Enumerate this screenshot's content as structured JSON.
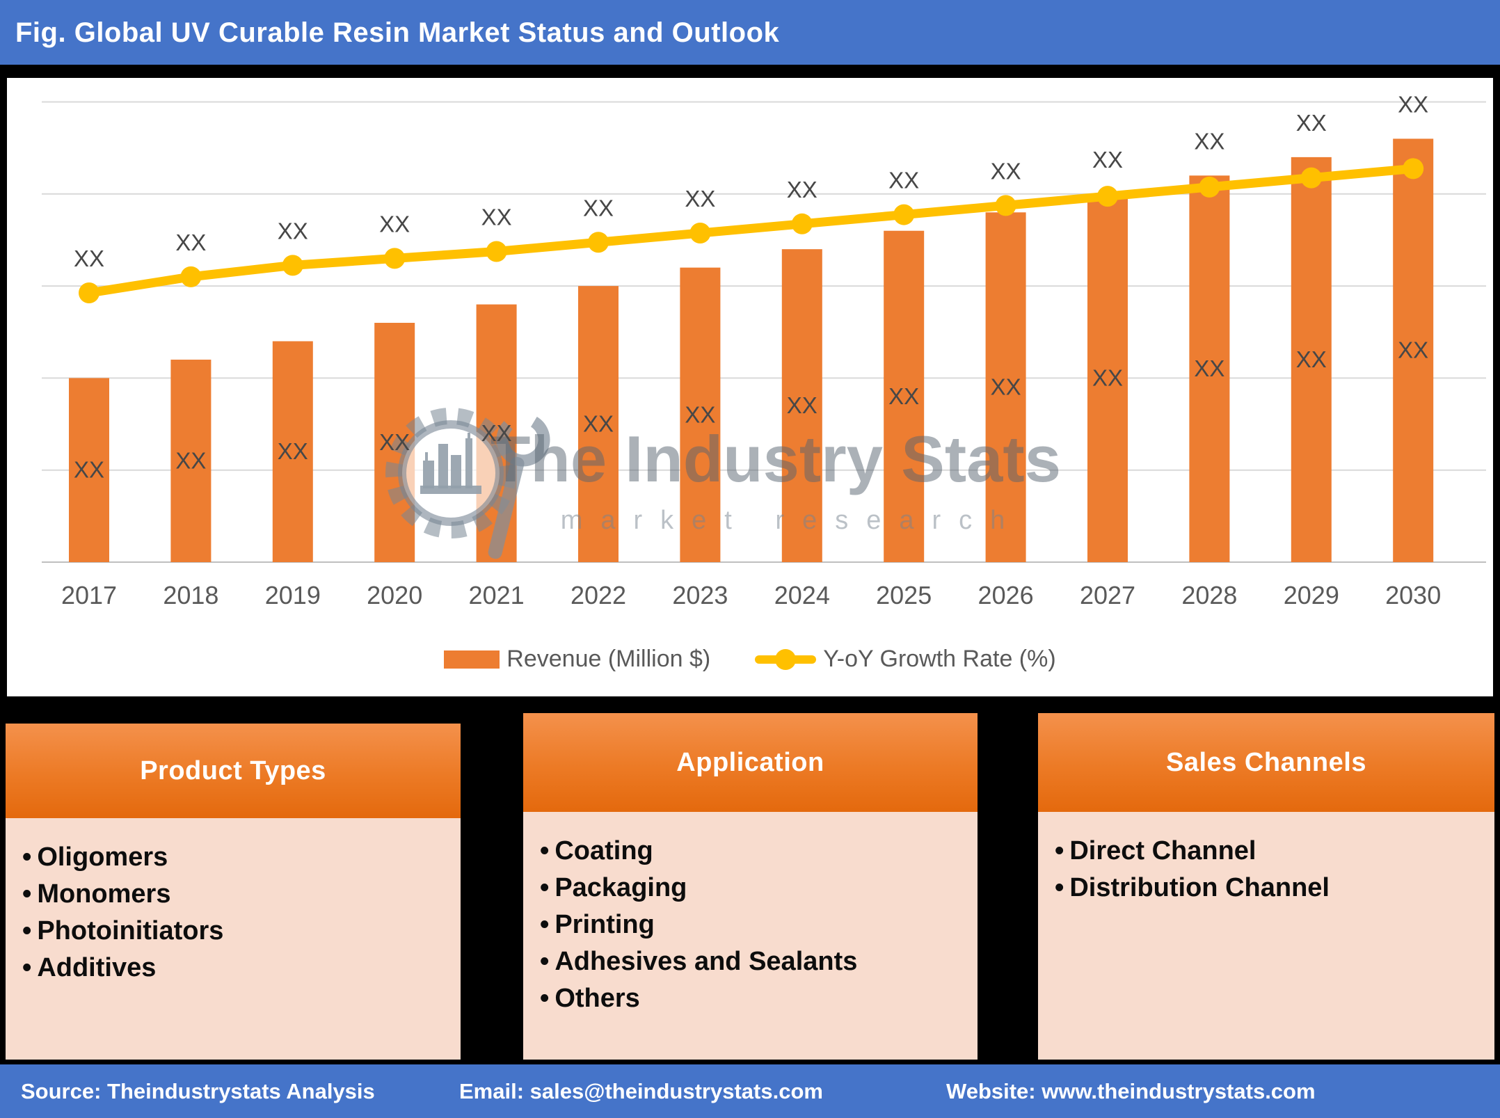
{
  "title_bar": {
    "title": "Fig. Global UV Curable Resin Market Status and Outlook"
  },
  "chart_data": {
    "type": "bar",
    "subtype": "combo-bar-line",
    "categories": [
      "2017",
      "2018",
      "2019",
      "2020",
      "2021",
      "2022",
      "2023",
      "2024",
      "2025",
      "2026",
      "2027",
      "2028",
      "2029",
      "2030"
    ],
    "data_label": "XX",
    "note": "All numeric data labels are masked as XX in the source image; series values below are relative heights (0-100 scale) estimated from pixel positions because the value axis is hidden.",
    "series": [
      {
        "name": "Revenue (Million $)",
        "type": "bar",
        "color": "#ED7D31",
        "values": [
          40,
          44,
          48,
          52,
          56,
          60,
          64,
          68,
          72,
          76,
          80,
          84,
          88,
          92
        ]
      },
      {
        "name": "Y-oY Growth Rate (%)",
        "type": "line",
        "color": "#FFC000",
        "values": [
          58.5,
          62,
          64.5,
          66,
          67.5,
          69.5,
          71.5,
          73.5,
          75.5,
          77.5,
          79.5,
          81.5,
          83.5,
          85.5
        ]
      }
    ],
    "value_axis": {
      "visible": false,
      "gridlines": 6
    },
    "legend_position": "bottom",
    "grid": "horizontal"
  },
  "watermark": {
    "line1": "The Industry Stats",
    "line2": "market research",
    "icon": "gear-factory-wrench"
  },
  "panels": [
    {
      "title": "Product Types",
      "items": [
        "Oligomers",
        "Monomers",
        "Photoinitiators",
        "Additives"
      ]
    },
    {
      "title": "Application",
      "items": [
        "Coating",
        "Packaging",
        "Printing",
        "Adhesives and Sealants",
        "Others"
      ]
    },
    {
      "title": "Sales Channels",
      "items": [
        "Direct Channel",
        "Distribution Channel"
      ]
    }
  ],
  "footer": {
    "source": "Source: Theindustrystats Analysis",
    "email": "Email: sales@theindustrystats.com",
    "website": "Website: www.theindustrystats.com"
  },
  "colors": {
    "accent_blue": "#4574C9",
    "bar_orange": "#ED7D31",
    "line_yellow": "#FFC000",
    "panel_header_orange": "#EC7A25",
    "panel_body_peach": "#F8DCCE",
    "label_gray": "#474747",
    "axis_gray": "#595959",
    "background_black": "#000000"
  }
}
